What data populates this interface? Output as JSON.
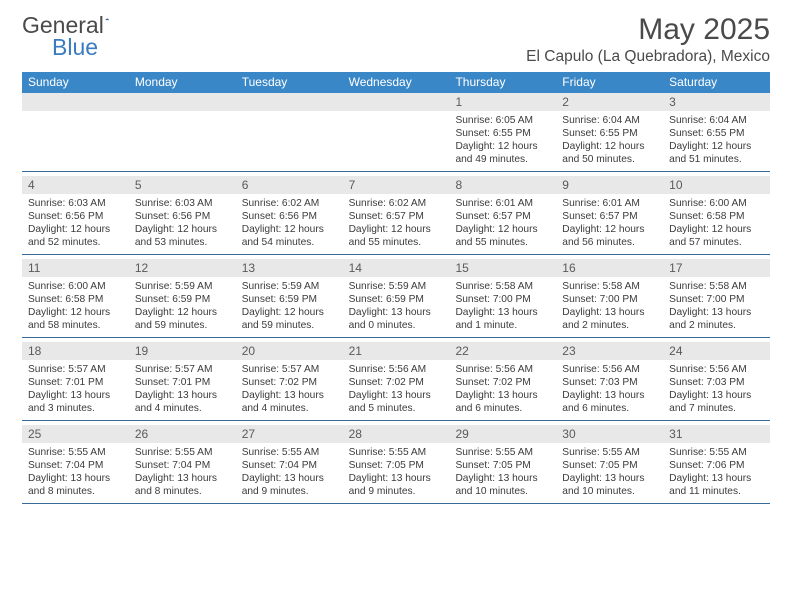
{
  "brand": {
    "word1": "General",
    "word2": "Blue"
  },
  "title": {
    "month": "May 2025",
    "location": "El Capulo (La Quebradora), Mexico"
  },
  "colors": {
    "accent": "#3a87c7",
    "rule": "#3a6a9a",
    "stripe": "#e8e8e8",
    "text": "#333333"
  },
  "dow": [
    "Sunday",
    "Monday",
    "Tuesday",
    "Wednesday",
    "Thursday",
    "Friday",
    "Saturday"
  ],
  "weeks": [
    [
      null,
      null,
      null,
      null,
      {
        "n": "1",
        "sr": "Sunrise: 6:05 AM",
        "ss": "Sunset: 6:55 PM",
        "d1": "Daylight: 12 hours",
        "d2": "and 49 minutes."
      },
      {
        "n": "2",
        "sr": "Sunrise: 6:04 AM",
        "ss": "Sunset: 6:55 PM",
        "d1": "Daylight: 12 hours",
        "d2": "and 50 minutes."
      },
      {
        "n": "3",
        "sr": "Sunrise: 6:04 AM",
        "ss": "Sunset: 6:55 PM",
        "d1": "Daylight: 12 hours",
        "d2": "and 51 minutes."
      }
    ],
    [
      {
        "n": "4",
        "sr": "Sunrise: 6:03 AM",
        "ss": "Sunset: 6:56 PM",
        "d1": "Daylight: 12 hours",
        "d2": "and 52 minutes."
      },
      {
        "n": "5",
        "sr": "Sunrise: 6:03 AM",
        "ss": "Sunset: 6:56 PM",
        "d1": "Daylight: 12 hours",
        "d2": "and 53 minutes."
      },
      {
        "n": "6",
        "sr": "Sunrise: 6:02 AM",
        "ss": "Sunset: 6:56 PM",
        "d1": "Daylight: 12 hours",
        "d2": "and 54 minutes."
      },
      {
        "n": "7",
        "sr": "Sunrise: 6:02 AM",
        "ss": "Sunset: 6:57 PM",
        "d1": "Daylight: 12 hours",
        "d2": "and 55 minutes."
      },
      {
        "n": "8",
        "sr": "Sunrise: 6:01 AM",
        "ss": "Sunset: 6:57 PM",
        "d1": "Daylight: 12 hours",
        "d2": "and 55 minutes."
      },
      {
        "n": "9",
        "sr": "Sunrise: 6:01 AM",
        "ss": "Sunset: 6:57 PM",
        "d1": "Daylight: 12 hours",
        "d2": "and 56 minutes."
      },
      {
        "n": "10",
        "sr": "Sunrise: 6:00 AM",
        "ss": "Sunset: 6:58 PM",
        "d1": "Daylight: 12 hours",
        "d2": "and 57 minutes."
      }
    ],
    [
      {
        "n": "11",
        "sr": "Sunrise: 6:00 AM",
        "ss": "Sunset: 6:58 PM",
        "d1": "Daylight: 12 hours",
        "d2": "and 58 minutes."
      },
      {
        "n": "12",
        "sr": "Sunrise: 5:59 AM",
        "ss": "Sunset: 6:59 PM",
        "d1": "Daylight: 12 hours",
        "d2": "and 59 minutes."
      },
      {
        "n": "13",
        "sr": "Sunrise: 5:59 AM",
        "ss": "Sunset: 6:59 PM",
        "d1": "Daylight: 12 hours",
        "d2": "and 59 minutes."
      },
      {
        "n": "14",
        "sr": "Sunrise: 5:59 AM",
        "ss": "Sunset: 6:59 PM",
        "d1": "Daylight: 13 hours",
        "d2": "and 0 minutes."
      },
      {
        "n": "15",
        "sr": "Sunrise: 5:58 AM",
        "ss": "Sunset: 7:00 PM",
        "d1": "Daylight: 13 hours",
        "d2": "and 1 minute."
      },
      {
        "n": "16",
        "sr": "Sunrise: 5:58 AM",
        "ss": "Sunset: 7:00 PM",
        "d1": "Daylight: 13 hours",
        "d2": "and 2 minutes."
      },
      {
        "n": "17",
        "sr": "Sunrise: 5:58 AM",
        "ss": "Sunset: 7:00 PM",
        "d1": "Daylight: 13 hours",
        "d2": "and 2 minutes."
      }
    ],
    [
      {
        "n": "18",
        "sr": "Sunrise: 5:57 AM",
        "ss": "Sunset: 7:01 PM",
        "d1": "Daylight: 13 hours",
        "d2": "and 3 minutes."
      },
      {
        "n": "19",
        "sr": "Sunrise: 5:57 AM",
        "ss": "Sunset: 7:01 PM",
        "d1": "Daylight: 13 hours",
        "d2": "and 4 minutes."
      },
      {
        "n": "20",
        "sr": "Sunrise: 5:57 AM",
        "ss": "Sunset: 7:02 PM",
        "d1": "Daylight: 13 hours",
        "d2": "and 4 minutes."
      },
      {
        "n": "21",
        "sr": "Sunrise: 5:56 AM",
        "ss": "Sunset: 7:02 PM",
        "d1": "Daylight: 13 hours",
        "d2": "and 5 minutes."
      },
      {
        "n": "22",
        "sr": "Sunrise: 5:56 AM",
        "ss": "Sunset: 7:02 PM",
        "d1": "Daylight: 13 hours",
        "d2": "and 6 minutes."
      },
      {
        "n": "23",
        "sr": "Sunrise: 5:56 AM",
        "ss": "Sunset: 7:03 PM",
        "d1": "Daylight: 13 hours",
        "d2": "and 6 minutes."
      },
      {
        "n": "24",
        "sr": "Sunrise: 5:56 AM",
        "ss": "Sunset: 7:03 PM",
        "d1": "Daylight: 13 hours",
        "d2": "and 7 minutes."
      }
    ],
    [
      {
        "n": "25",
        "sr": "Sunrise: 5:55 AM",
        "ss": "Sunset: 7:04 PM",
        "d1": "Daylight: 13 hours",
        "d2": "and 8 minutes."
      },
      {
        "n": "26",
        "sr": "Sunrise: 5:55 AM",
        "ss": "Sunset: 7:04 PM",
        "d1": "Daylight: 13 hours",
        "d2": "and 8 minutes."
      },
      {
        "n": "27",
        "sr": "Sunrise: 5:55 AM",
        "ss": "Sunset: 7:04 PM",
        "d1": "Daylight: 13 hours",
        "d2": "and 9 minutes."
      },
      {
        "n": "28",
        "sr": "Sunrise: 5:55 AM",
        "ss": "Sunset: 7:05 PM",
        "d1": "Daylight: 13 hours",
        "d2": "and 9 minutes."
      },
      {
        "n": "29",
        "sr": "Sunrise: 5:55 AM",
        "ss": "Sunset: 7:05 PM",
        "d1": "Daylight: 13 hours",
        "d2": "and 10 minutes."
      },
      {
        "n": "30",
        "sr": "Sunrise: 5:55 AM",
        "ss": "Sunset: 7:05 PM",
        "d1": "Daylight: 13 hours",
        "d2": "and 10 minutes."
      },
      {
        "n": "31",
        "sr": "Sunrise: 5:55 AM",
        "ss": "Sunset: 7:06 PM",
        "d1": "Daylight: 13 hours",
        "d2": "and 11 minutes."
      }
    ]
  ]
}
